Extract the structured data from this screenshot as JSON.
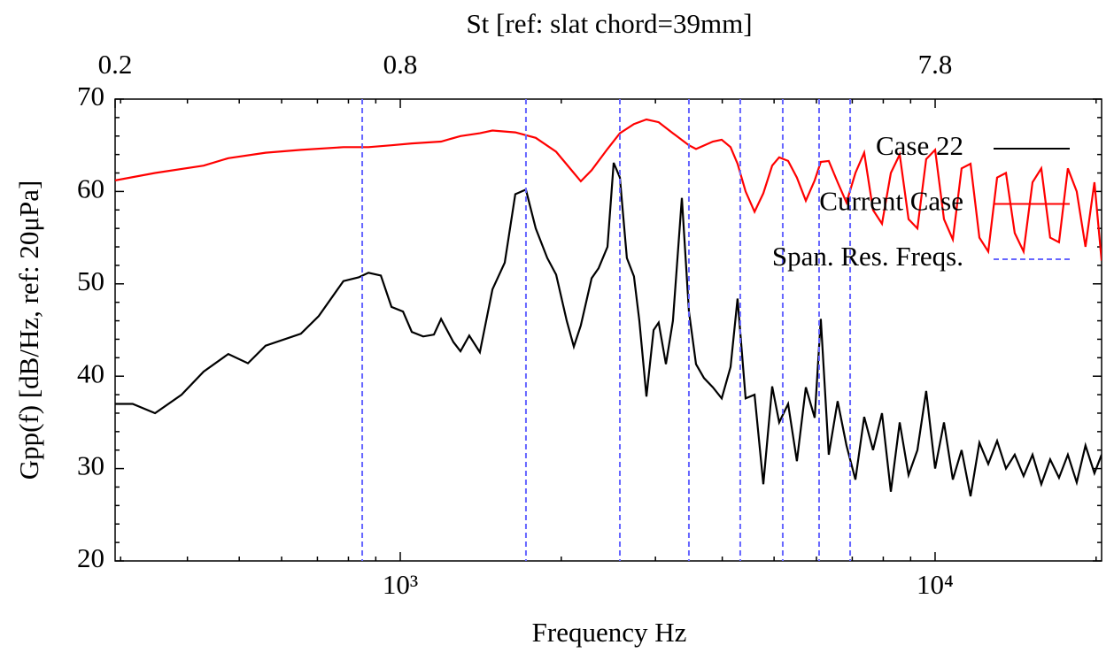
{
  "chart_data": {
    "type": "line",
    "title": "St [ref: slat chord=39mm]",
    "xlabel": "Frequency Hz",
    "ylabel": "Gpp(f) [dB/Hz, ref: 20μPa]",
    "xscale": "log",
    "x2scale": "log",
    "xlim": [
      293,
      20480
    ],
    "ylim": [
      20,
      70
    ],
    "x2lim": [
      0.2285,
      15.97
    ],
    "xticks": [
      {
        "value": 1000,
        "label": "10³"
      },
      {
        "value": 10000,
        "label": "10⁴"
      }
    ],
    "xminorticks": [
      300,
      400,
      500,
      600,
      700,
      800,
      900,
      2000,
      3000,
      4000,
      5000,
      6000,
      7000,
      8000,
      9000,
      20000
    ],
    "x2ticks": [
      {
        "value": 0.2285,
        "label": "0.2"
      },
      {
        "value": 0.78,
        "label": "0.8"
      },
      {
        "value": 7.8,
        "label": "7.8"
      }
    ],
    "yticks": [
      20,
      30,
      40,
      50,
      60,
      70
    ],
    "yminorticks": [
      22,
      24,
      26,
      28,
      32,
      34,
      36,
      38,
      42,
      44,
      46,
      48,
      52,
      54,
      56,
      58,
      62,
      64,
      66,
      68
    ],
    "legend": "upper right",
    "series": [
      {
        "name": "Case 22",
        "color": "#000000",
        "x": [
          293,
          316,
          348,
          390,
          429,
          477,
          519,
          560,
          652,
          704,
          783,
          836,
          872,
          920,
          963,
          1012,
          1051,
          1104,
          1156,
          1192,
          1257,
          1296,
          1346,
          1409,
          1487,
          1568,
          1641,
          1718,
          1792,
          1883,
          1956,
          2048,
          2111,
          2176,
          2279,
          2349,
          2440,
          2506,
          2574,
          2653,
          2735,
          2799,
          2886,
          2976,
          3042,
          3138,
          3235,
          3361,
          3465,
          3573,
          3698,
          3841,
          3990,
          4145,
          4273,
          4424,
          4596,
          4773,
          4959,
          5111,
          5311,
          5516,
          5732,
          5954,
          6114,
          6328,
          6574,
          6829,
          7096,
          7370,
          7657,
          7957,
          8265,
          8586,
          8920,
          9268,
          9625,
          10000,
          10389,
          10793,
          11211,
          11648,
          12100,
          12570,
          13060,
          13570,
          14090,
          14640,
          15210,
          15800,
          16410,
          17050,
          17710,
          18400,
          19110,
          19860,
          20480
        ],
        "values": [
          37.0,
          37.0,
          36.0,
          38.0,
          40.5,
          42.4,
          41.4,
          43.3,
          44.6,
          46.5,
          50.3,
          50.7,
          51.2,
          50.9,
          47.5,
          47.0,
          44.8,
          44.3,
          44.5,
          46.2,
          43.7,
          42.7,
          44.4,
          42.6,
          49.4,
          52.3,
          59.7,
          60.2,
          56.0,
          52.8,
          51.0,
          46.0,
          43.2,
          45.5,
          50.6,
          51.7,
          54.0,
          63.1,
          61.5,
          52.8,
          50.8,
          46.0,
          37.8,
          45.0,
          45.8,
          41.3,
          46.0,
          59.3,
          47.0,
          41.3,
          39.8,
          38.8,
          37.6,
          41.0,
          48.4,
          37.6,
          38.0,
          28.3,
          38.9,
          35.0,
          37.0,
          30.8,
          38.8,
          35.5,
          46.2,
          31.5,
          37.3,
          32.5,
          28.8,
          35.6,
          32.0,
          36.0,
          27.5,
          35.0,
          29.3,
          32.0,
          38.4,
          30.0,
          35.0,
          28.8,
          32.0,
          27.0,
          32.8,
          30.5,
          33.0,
          30.0,
          31.5,
          29.2,
          31.5,
          28.3,
          31.0,
          29.0,
          31.5,
          28.5,
          32.5,
          29.5,
          31.5
        ]
      },
      {
        "name": "Current Case",
        "color": "#ff0000",
        "x": [
          293,
          348,
          429,
          477,
          560,
          652,
          783,
          872,
          963,
          1051,
          1192,
          1296,
          1409,
          1487,
          1641,
          1792,
          1956,
          2111,
          2176,
          2279,
          2440,
          2574,
          2735,
          2886,
          3042,
          3235,
          3465,
          3573,
          3841,
          3990,
          4145,
          4273,
          4424,
          4596,
          4773,
          4959,
          5111,
          5311,
          5516,
          5732,
          5954,
          6114,
          6328,
          6574,
          6829,
          7096,
          7370,
          7657,
          7957,
          8265,
          8586,
          8920,
          9268,
          9625,
          10000,
          10389,
          10793,
          11211,
          11648,
          12100,
          12570,
          13060,
          13570,
          14090,
          14640,
          15210,
          15800,
          16410,
          17050,
          17710,
          18400,
          19110,
          19860,
          20480
        ],
        "values": [
          61.2,
          62.0,
          62.8,
          63.6,
          64.2,
          64.5,
          64.8,
          64.8,
          65.0,
          65.2,
          65.4,
          66.0,
          66.3,
          66.6,
          66.4,
          65.8,
          64.3,
          62.0,
          61.1,
          62.3,
          64.6,
          66.3,
          67.3,
          67.8,
          67.5,
          66.3,
          65.0,
          64.6,
          65.4,
          65.6,
          64.8,
          63.0,
          60.0,
          57.8,
          59.8,
          62.8,
          63.7,
          63.3,
          61.5,
          59.0,
          61.2,
          63.2,
          63.3,
          61.0,
          58.8,
          62.0,
          64.2,
          58.0,
          56.5,
          62.0,
          64.0,
          57.0,
          56.0,
          63.5,
          64.5,
          57.0,
          54.8,
          62.5,
          63.0,
          55.0,
          53.5,
          61.5,
          62.0,
          55.5,
          53.5,
          61.0,
          62.5,
          55.0,
          54.5,
          62.5,
          60.0,
          54.0,
          61.0,
          52.5
        ]
      },
      {
        "name": "Span. Res. Freqs.",
        "color": "#6666ff",
        "style": "vline",
        "x": [
          849,
          1718,
          2574,
          3465,
          4322,
          5190,
          6069,
          6937
        ]
      }
    ]
  }
}
